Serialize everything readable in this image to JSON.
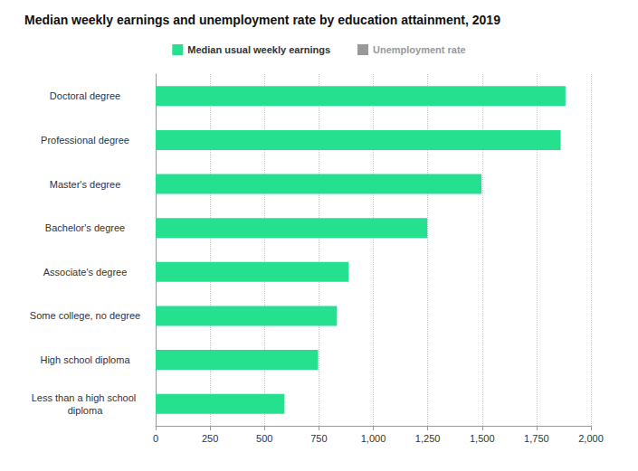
{
  "chart_data": {
    "type": "bar",
    "orientation": "horizontal",
    "title": "Median weekly earnings and unemployment rate by education attainment, 2019",
    "categories": [
      "Doctoral degree",
      "Professional degree",
      "Master's degree",
      "Bachelor's degree",
      "Associate's degree",
      "Some college, no degree",
      "High school diploma",
      "Less than a high school diploma"
    ],
    "series": [
      {
        "name": "Median usual weekly earnings",
        "color": "#25e08f",
        "values": [
          1883,
          1861,
          1497,
          1248,
          887,
          833,
          746,
          592
        ]
      },
      {
        "name": "Unemployment rate",
        "color": "#888888",
        "values": [
          null,
          null,
          null,
          null,
          null,
          null,
          null,
          null
        ]
      }
    ],
    "xlim": [
      0,
      2000
    ],
    "xticks": [
      0,
      250,
      500,
      750,
      {
        "value": 1000,
        "label": "1,000"
      },
      {
        "value": 1250,
        "label": "1,250"
      },
      {
        "value": 1500,
        "label": "1,500"
      },
      {
        "value": 1750,
        "label": "1,750"
      },
      {
        "value": 2000,
        "label": "2,000"
      }
    ],
    "grid": true,
    "legend": "top",
    "data_labels": false
  }
}
